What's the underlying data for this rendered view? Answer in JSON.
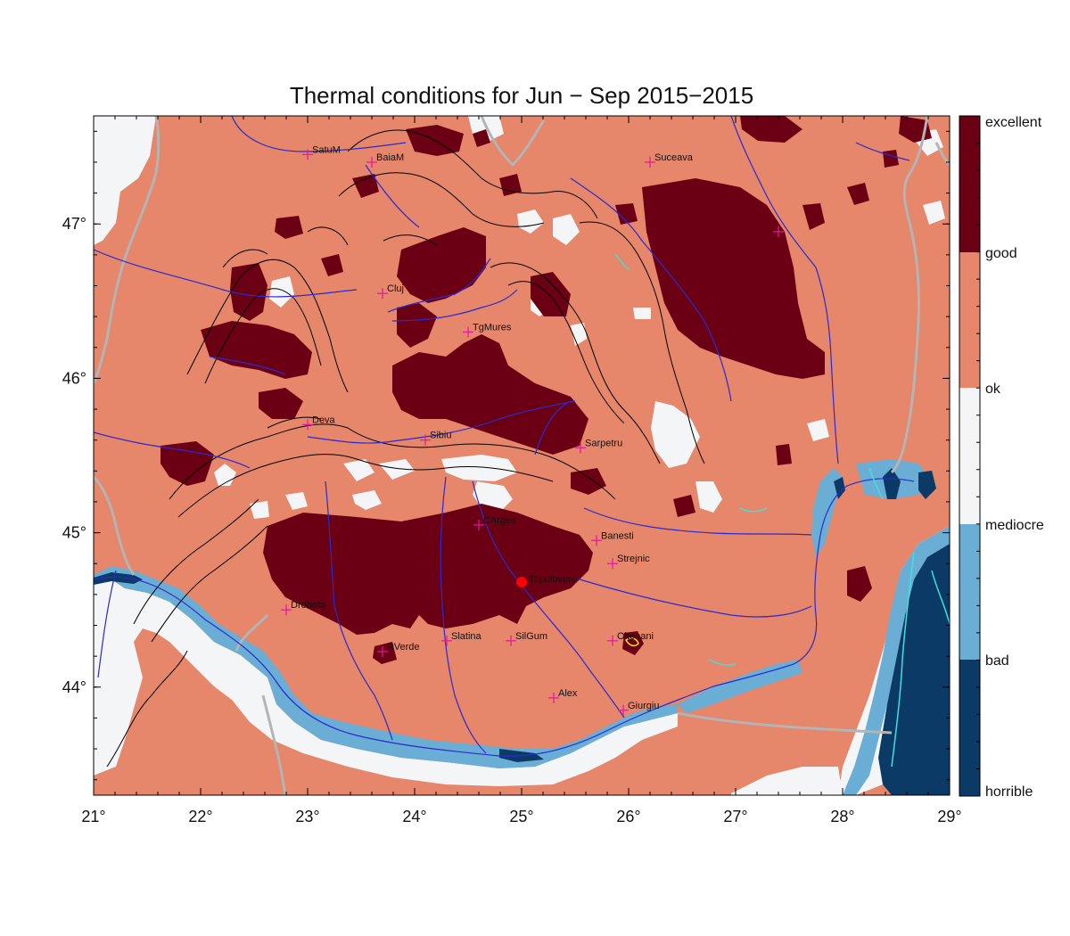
{
  "title": "Thermal conditions for Jun − Sep  2015−2015",
  "map": {
    "lon_range": [
      21,
      29
    ],
    "lat_range": [
      43.3,
      47.7
    ],
    "x_ticks": [
      {
        "value": 21,
        "label": "21°"
      },
      {
        "value": 22,
        "label": "22°"
      },
      {
        "value": 23,
        "label": "23°"
      },
      {
        "value": 24,
        "label": "24°"
      },
      {
        "value": 25,
        "label": "25°"
      },
      {
        "value": 26,
        "label": "26°"
      },
      {
        "value": 27,
        "label": "27°"
      },
      {
        "value": 28,
        "label": "28°"
      },
      {
        "value": 29,
        "label": "29°"
      }
    ],
    "y_ticks": [
      {
        "value": 44,
        "label": "44°"
      },
      {
        "value": 45,
        "label": "45°"
      },
      {
        "value": 46,
        "label": "46°"
      },
      {
        "value": 47,
        "label": "47°"
      }
    ],
    "colors": {
      "horrible": "#0b3a66",
      "bad": "#6aaed6",
      "mediocre": "#f4f5f7",
      "ok": "#e6866a",
      "good": "#6b0015",
      "river": "#2a2ad0",
      "border": "#b4b4b4",
      "contour": "#000000",
      "city_marker": "#e0199e",
      "highlight": "#ff0000",
      "lake": "#40e0e0"
    },
    "cities": [
      {
        "name": "SatuM",
        "lon": 23.0,
        "lat": 47.45
      },
      {
        "name": "BaiaM",
        "lon": 23.6,
        "lat": 47.4
      },
      {
        "name": "Suceava",
        "lon": 26.2,
        "lat": 47.4
      },
      {
        "name": "",
        "lon": 27.4,
        "lat": 46.95
      },
      {
        "name": "Cluj",
        "lon": 23.7,
        "lat": 46.55
      },
      {
        "name": "TgMures",
        "lon": 24.5,
        "lat": 46.3
      },
      {
        "name": "Deva",
        "lon": 23.0,
        "lat": 45.7
      },
      {
        "name": "Sibiu",
        "lon": 24.1,
        "lat": 45.6
      },
      {
        "name": "Sarpetru",
        "lon": 25.55,
        "lat": 45.55
      },
      {
        "name": "CArges",
        "lon": 24.6,
        "lat": 45.05
      },
      {
        "name": "Banesti",
        "lon": 25.7,
        "lat": 44.95
      },
      {
        "name": "Strejnic",
        "lon": 25.85,
        "lat": 44.8
      },
      {
        "name": "Drobeta",
        "lon": 22.8,
        "lat": 44.5
      },
      {
        "name": "Slatina",
        "lon": 24.3,
        "lat": 44.3
      },
      {
        "name": "SilGum",
        "lon": 24.9,
        "lat": 44.3
      },
      {
        "name": "Oltenani",
        "lon": 25.85,
        "lat": 44.3
      },
      {
        "name": "RVerde",
        "lon": 23.7,
        "lat": 44.23
      },
      {
        "name": "Alex",
        "lon": 25.3,
        "lat": 43.93
      },
      {
        "name": "Giurgiu",
        "lon": 25.95,
        "lat": 43.85
      }
    ],
    "highlight": {
      "name": "Topoloveni",
      "lon": 25.0,
      "lat": 44.68
    }
  },
  "legend": {
    "labels": [
      "excellent",
      "good",
      "ok",
      "mediocre",
      "bad",
      "horrible"
    ]
  }
}
